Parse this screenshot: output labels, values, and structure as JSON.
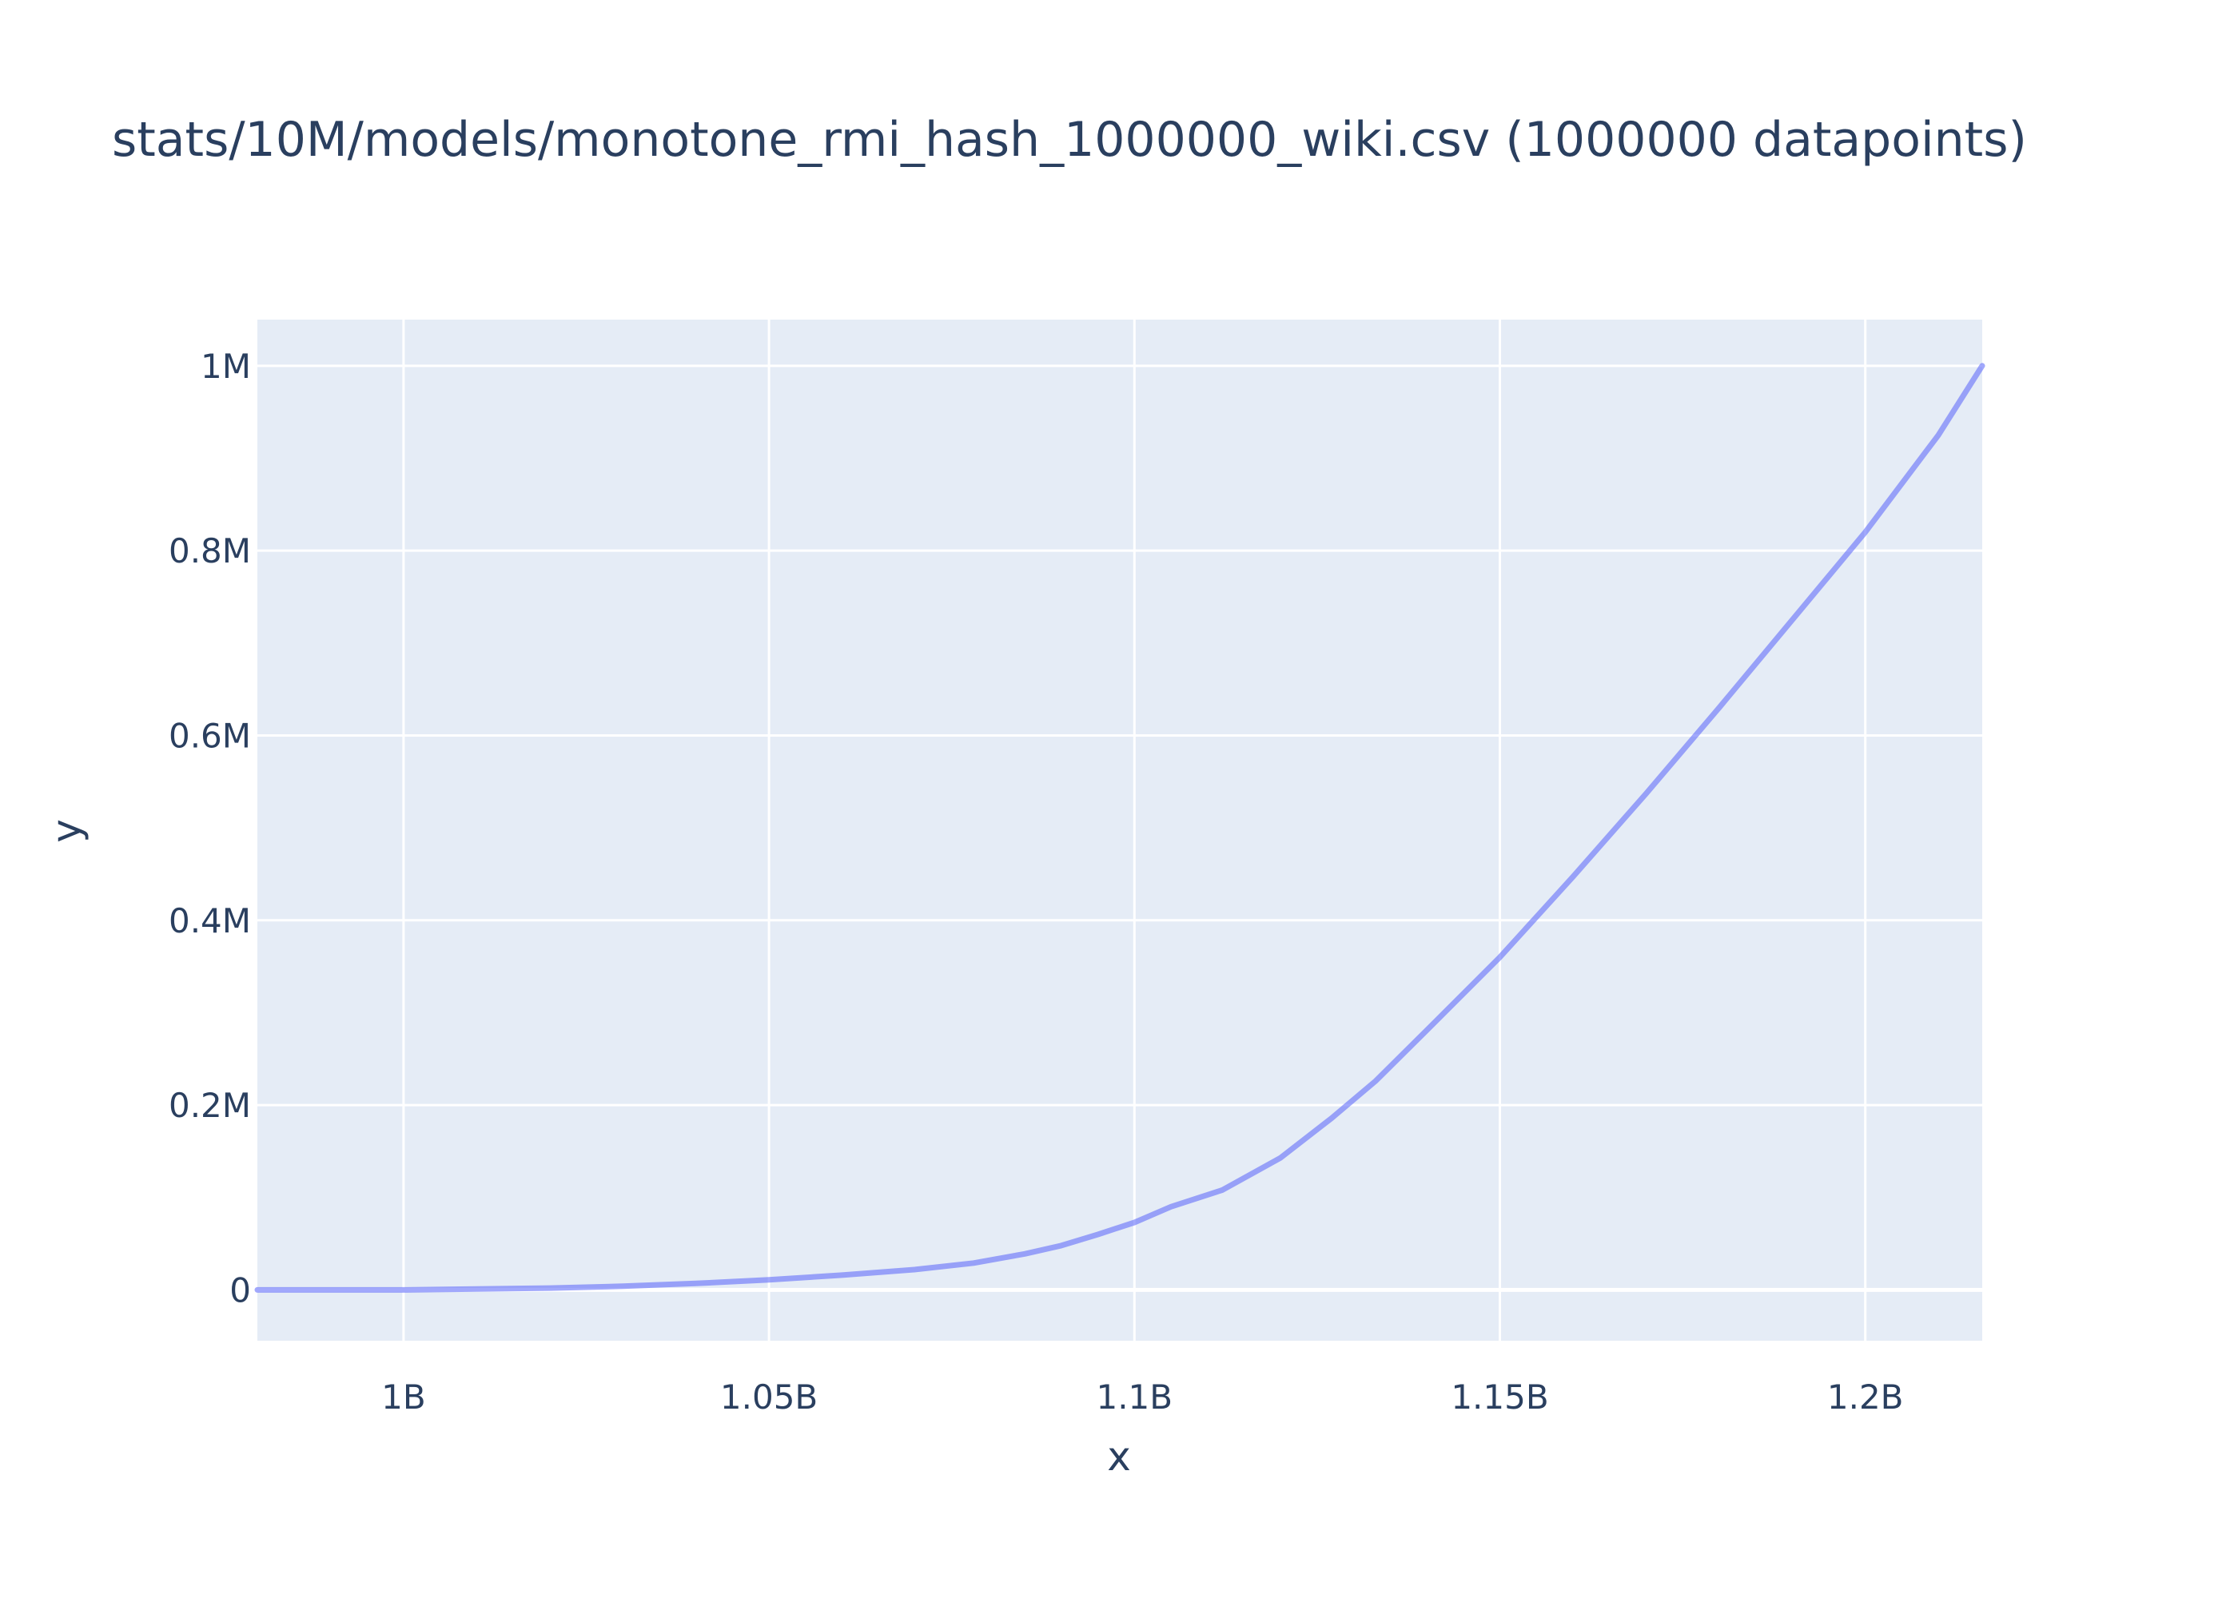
{
  "chart_data": {
    "type": "line",
    "title": "stats/10M/models/monotone_rmi_hash_1000000_wiki.csv (1000000 datapoints)",
    "xlabel": "x",
    "ylabel": "y",
    "xlim": [
      980000000,
      1216000000
    ],
    "ylim": [
      -55000,
      1050000
    ],
    "grid": true,
    "legend": "none",
    "colors": {
      "line": "#636efa",
      "plot_bg": "#e5ecf6",
      "grid": "#ffffff",
      "text": "#2a3f5f"
    },
    "x_ticks": [
      {
        "value": 1000000000,
        "label": "1B"
      },
      {
        "value": 1050000000,
        "label": "1.05B"
      },
      {
        "value": 1100000000,
        "label": "1.1B"
      },
      {
        "value": 1150000000,
        "label": "1.15B"
      },
      {
        "value": 1200000000,
        "label": "1.2B"
      }
    ],
    "y_ticks": [
      {
        "value": 0,
        "label": "0"
      },
      {
        "value": 200000,
        "label": "0.2M"
      },
      {
        "value": 400000,
        "label": "0.4M"
      },
      {
        "value": 600000,
        "label": "0.6M"
      },
      {
        "value": 800000,
        "label": "0.8M"
      },
      {
        "value": 1000000,
        "label": "1M"
      }
    ],
    "series": [
      {
        "x": [
          980000000,
          1000000000,
          1010000000,
          1020000000,
          1030000000,
          1040000000,
          1050000000,
          1060000000,
          1070000000,
          1078000000,
          1085000000,
          1090000000,
          1095000000,
          1100000000,
          1105000000,
          1112000000,
          1120000000,
          1127000000,
          1133000000,
          1140000000,
          1150000000,
          1160000000,
          1170000000,
          1180000000,
          1190000000,
          1200000000,
          1210000000,
          1216000000
        ],
        "y": [
          0,
          0,
          1000,
          2000,
          4000,
          7000,
          11000,
          16000,
          22000,
          29000,
          39000,
          48000,
          60000,
          73000,
          90000,
          108000,
          143000,
          186000,
          226000,
          281000,
          360000,
          447000,
          537000,
          630000,
          725000,
          820000,
          925000,
          1000000
        ]
      }
    ]
  }
}
